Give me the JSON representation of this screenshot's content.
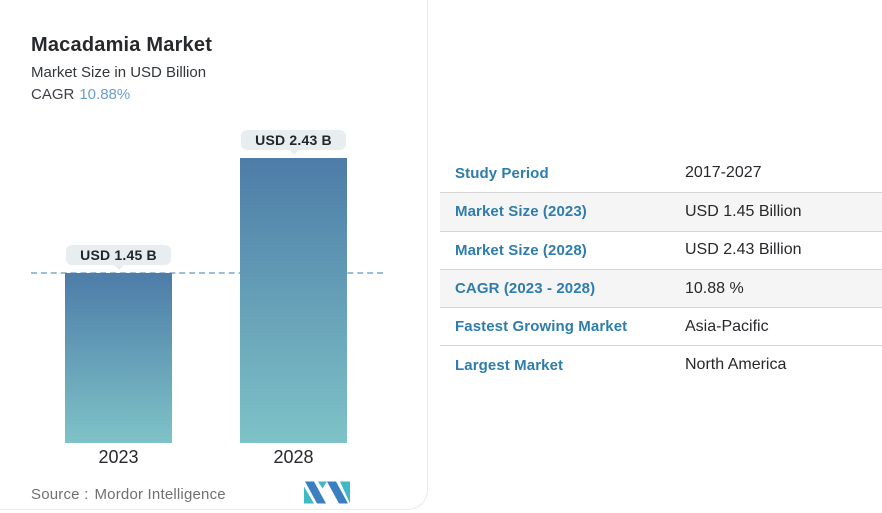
{
  "header": {
    "title": "Macadamia Market",
    "subtitle": "Market Size in USD Billion",
    "cagr_label": "CAGR",
    "cagr_value": "10.88%"
  },
  "chart_data": {
    "type": "bar",
    "title": "Macadamia Market",
    "ylabel": "Market Size in USD Billion",
    "categories": [
      "2023",
      "2028"
    ],
    "values": [
      1.45,
      2.43
    ],
    "value_labels": [
      "USD 1.45 B",
      "USD 2.43 B"
    ],
    "unit": "USD Billion",
    "ylim": [
      0,
      2.43
    ],
    "grid": false,
    "legend": "none",
    "reference_line": {
      "value": 1.45,
      "style": "dashed"
    }
  },
  "table": {
    "rows": [
      {
        "label": "Study Period",
        "value": "2017-2027"
      },
      {
        "label": "Market Size (2023)",
        "value": "USD 1.45 Billion"
      },
      {
        "label": "Market Size (2028)",
        "value": "USD 2.43 Billion"
      },
      {
        "label": "CAGR (2023 - 2028)",
        "value": "10.88 %"
      },
      {
        "label": "Fastest Growing Market",
        "value": "Asia-Pacific"
      },
      {
        "label": "Largest Market",
        "value": "North America"
      }
    ]
  },
  "footer": {
    "source_label": "Source :",
    "source_value": "Mordor Intelligence",
    "logo": "mordor-intelligence-logo"
  },
  "colors": {
    "label_blue": "#2e7dad",
    "cagr_blue": "#6b9dcb",
    "bar_top": "#4d7ca8",
    "bar_bottom": "#7ec3c7",
    "dash_line": "#9fbdd8",
    "badge_bg": "#e8edf0",
    "row_alt_bg": "#f5f5f5",
    "row_border": "#d4d4d4",
    "text_dark": "#26282b",
    "text_gray": "#707070",
    "card_border": "#e9e9e9",
    "logo_blue": "#3b7ec2",
    "logo_teal": "#3fb9c5"
  }
}
